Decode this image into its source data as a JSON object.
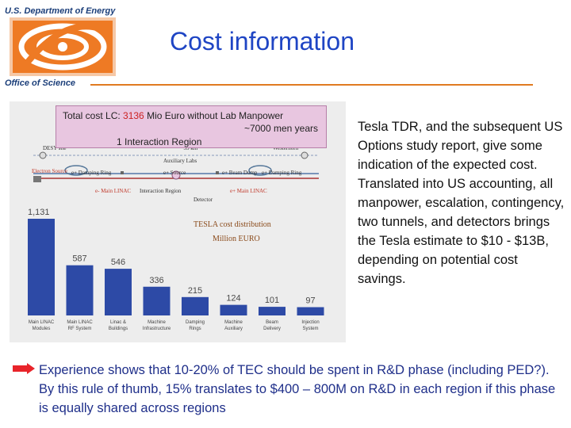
{
  "header": {
    "agency": "U.S. Department of Energy",
    "office": "Office of Science",
    "title": "Cost information"
  },
  "banner": {
    "prefix": "Total cost  LC: ",
    "amount": "3136",
    "suffix": " Mio Euro without Lab Manpower",
    "men_years": "~7000 men years",
    "region": "1 Interaction Region"
  },
  "diagram": {
    "desy_site": "DESY site",
    "auxiliary_labs": "Auxiliary Labs",
    "westerhorn": "Westerhorn",
    "km": "~ 33 km",
    "damping_ring_left": "e+ Damping Ring",
    "source": "e+ Source",
    "beam_dump": "e+ Beam Dump",
    "damping_ring_right": "e+ Damping Ring",
    "main_linac_left": "e- Main LINAC",
    "main_linac_right": "e+ Main LINAC",
    "ir": "Interaction Region",
    "detector": "Detector",
    "e_source": "Electron Source"
  },
  "chart_data": {
    "type": "bar",
    "title": "TESLA cost distribution",
    "subtitle": "Million EURO",
    "categories": [
      "Main LINAC Modules",
      "Main LINAC RF System",
      "Linac & Buildings",
      "Machine Infrastructure",
      "Damping Rings",
      "Machine Auxiliary",
      "Beam Delivery",
      "Injection System"
    ],
    "values": [
      1131,
      587,
      546,
      336,
      215,
      124,
      101,
      97
    ],
    "value_labels": [
      "1,131",
      "587",
      "546",
      "336",
      "215",
      "124",
      "101",
      "97"
    ],
    "colors": {
      "bar": "#2d4aa6",
      "label": "#4a4a4a"
    },
    "ylim": [
      0,
      1131
    ]
  },
  "body_text": "Tesla TDR, and the subsequent US Options study report, give some indication of the expected cost.  Translated into US accounting, all manpower, escalation, contingency, two tunnels, and detectors brings the Tesla estimate to $10 - $13B, depending on potential cost savings.",
  "bottom_text": "Experience shows that 10-20% of TEC should be spent in R&D phase (including PED?).  By this rule of thumb, 15% translates to $400 – 800M on R&D in each region if this phase is equally shared across regions",
  "colors": {
    "title": "#1f45c4",
    "header_text": "#1c3f7a",
    "rule": "#e07a20",
    "arrow": "#e8242a",
    "bottom_text": "#1f2f8a"
  }
}
